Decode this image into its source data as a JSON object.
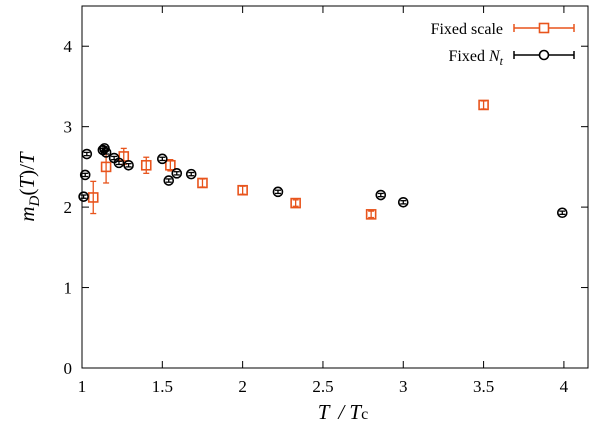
{
  "chart_data": {
    "type": "scatter",
    "xlabel": "T / Tc",
    "ylabel": "m_D(T)/T",
    "xlim": [
      1,
      4.15
    ],
    "ylim": [
      0,
      4.5
    ],
    "xticks": [
      "1",
      "1.5",
      "2",
      "2.5",
      "3",
      "3.5",
      "4"
    ],
    "yticks": [
      "0",
      "1",
      "2",
      "3",
      "4"
    ],
    "xtick_values": [
      1,
      1.5,
      2,
      2.5,
      3,
      3.5,
      4
    ],
    "ytick_values": [
      0,
      1,
      2,
      3,
      4
    ],
    "legend_position": "top-right",
    "series": [
      {
        "name": "Fixed scale",
        "marker": "square",
        "color": "#e8541c",
        "points": [
          {
            "x": 1.07,
            "y": 2.12,
            "err": 0.2
          },
          {
            "x": 1.15,
            "y": 2.5,
            "err": 0.2
          },
          {
            "x": 1.26,
            "y": 2.63,
            "err": 0.1
          },
          {
            "x": 1.4,
            "y": 2.52,
            "err": 0.1
          },
          {
            "x": 1.55,
            "y": 2.52,
            "err": 0.07
          },
          {
            "x": 1.75,
            "y": 2.3,
            "err": 0.05
          },
          {
            "x": 2.0,
            "y": 2.21,
            "err": 0.05
          },
          {
            "x": 2.33,
            "y": 2.05,
            "err": 0.04
          },
          {
            "x": 2.8,
            "y": 1.91,
            "err": 0.04
          },
          {
            "x": 3.5,
            "y": 3.27,
            "err": 0.05
          }
        ]
      },
      {
        "name": "Fixed N_t",
        "marker": "circle",
        "color": "#000000",
        "points": [
          {
            "x": 1.01,
            "y": 2.13,
            "err": 0.02
          },
          {
            "x": 1.02,
            "y": 2.4,
            "err": 0.02
          },
          {
            "x": 1.03,
            "y": 2.66,
            "err": 0.02
          },
          {
            "x": 1.13,
            "y": 2.71,
            "err": 0.02
          },
          {
            "x": 1.14,
            "y": 2.73,
            "err": 0.02
          },
          {
            "x": 1.15,
            "y": 2.68,
            "err": 0.02
          },
          {
            "x": 1.2,
            "y": 2.61,
            "err": 0.02
          },
          {
            "x": 1.23,
            "y": 2.55,
            "err": 0.02
          },
          {
            "x": 1.29,
            "y": 2.52,
            "err": 0.02
          },
          {
            "x": 1.5,
            "y": 2.6,
            "err": 0.02
          },
          {
            "x": 1.54,
            "y": 2.33,
            "err": 0.02
          },
          {
            "x": 1.59,
            "y": 2.42,
            "err": 0.02
          },
          {
            "x": 1.68,
            "y": 2.41,
            "err": 0.02
          },
          {
            "x": 2.22,
            "y": 2.19,
            "err": 0.02
          },
          {
            "x": 2.86,
            "y": 2.15,
            "err": 0.02
          },
          {
            "x": 3.0,
            "y": 2.06,
            "err": 0.02
          },
          {
            "x": 3.99,
            "y": 1.93,
            "err": 0.02
          }
        ]
      }
    ]
  }
}
